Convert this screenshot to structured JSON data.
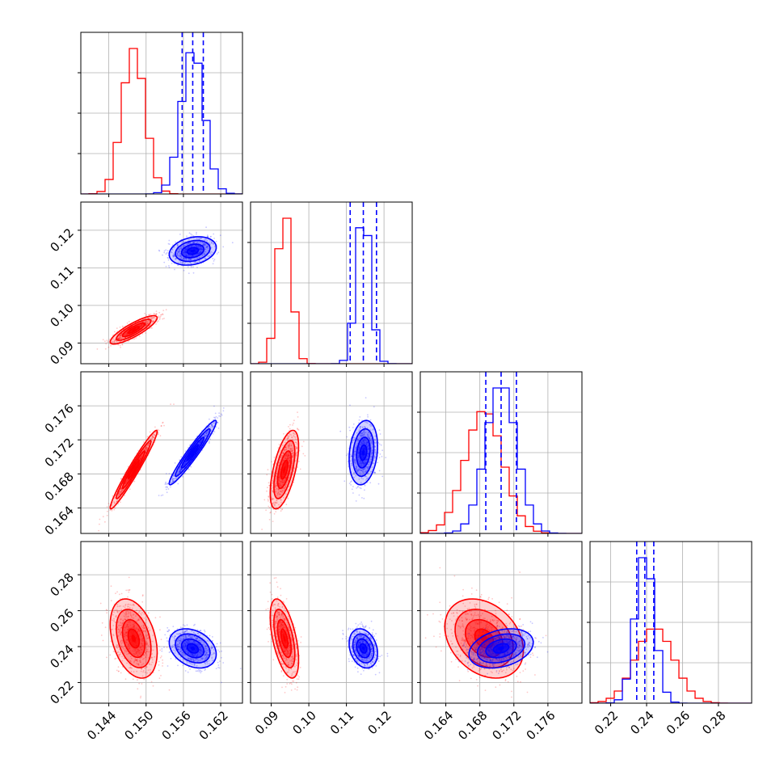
{
  "chart_data": {
    "type": "corner",
    "series": [
      {
        "name": "",
        "color": "#ff0000",
        "mean": [
          0.148,
          0.0935,
          0.1685,
          0.2445
        ],
        "std": [
          0.0018,
          0.0018,
          0.0022,
          0.0105
        ],
        "corr": [
          [
            1,
            0.85,
            0.97,
            -0.35
          ],
          [
            0.85,
            1,
            0.6,
            -0.55
          ],
          [
            0.97,
            0.6,
            1,
            -0.3
          ],
          [
            -0.35,
            -0.55,
            -0.3,
            1
          ]
        ]
      },
      {
        "name": "",
        "color": "#0000ff",
        "mean": [
          0.1575,
          0.1145,
          0.1705,
          0.239
        ],
        "std": [
          0.0018,
          0.0018,
          0.0018,
          0.0052
        ],
        "corr": [
          [
            1,
            0.25,
            0.96,
            -0.3
          ],
          [
            0.25,
            1,
            0.2,
            -0.25
          ],
          [
            0.96,
            0.2,
            1,
            0.3
          ],
          [
            -0.3,
            -0.25,
            0.3,
            1
          ]
        ]
      }
    ],
    "quantile_lines": {
      "color": "#0000ff",
      "values": [
        [
          0.1558,
          0.1575,
          0.1592
        ],
        [
          0.111,
          0.1145,
          0.118
        ],
        [
          0.1687,
          0.1705,
          0.1723
        ],
        [
          0.2345,
          0.239,
          0.244
        ]
      ]
    },
    "axes": [
      {
        "range": [
          0.1395,
          0.1655
        ],
        "ticks": [
          0.144,
          0.15,
          0.156,
          0.162
        ],
        "tick_labels": [
          "0.144",
          "0.150",
          "0.156",
          "0.162"
        ]
      },
      {
        "range": [
          0.0845,
          0.1275
        ],
        "ticks": [
          0.09,
          0.1,
          0.11,
          0.12
        ],
        "tick_labels": [
          "0.09",
          "0.10",
          "0.11",
          "0.12"
        ]
      },
      {
        "range": [
          0.161,
          0.18
        ],
        "ticks": [
          0.164,
          0.168,
          0.172,
          0.176
        ],
        "tick_labels": [
          "0.164",
          "0.168",
          "0.172",
          "0.176"
        ]
      },
      {
        "range": [
          0.2085,
          0.2985
        ],
        "ticks": [
          0.22,
          0.24,
          0.26,
          0.28
        ],
        "tick_labels": [
          "0.22",
          "0.24",
          "0.26",
          "0.28"
        ]
      }
    ],
    "grid": true,
    "xlabel": "",
    "ylabel": "",
    "title": ""
  }
}
